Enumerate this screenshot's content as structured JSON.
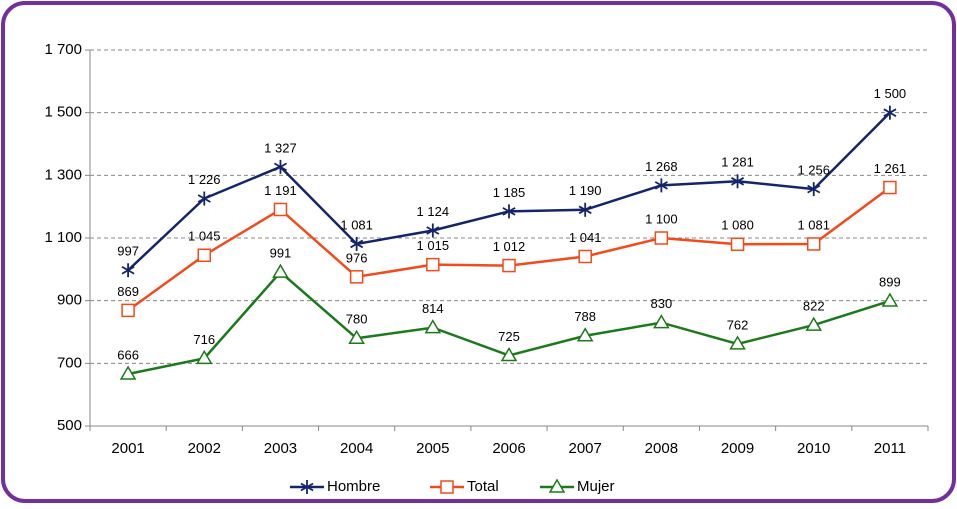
{
  "chart_data": {
    "type": "line",
    "categories": [
      "2001",
      "2002",
      "2003",
      "2004",
      "2005",
      "2006",
      "2007",
      "2008",
      "2009",
      "2010",
      "2011"
    ],
    "series": [
      {
        "name": "Hombre",
        "color": "#14256b",
        "marker": "star",
        "values": [
          997,
          1226,
          1327,
          1081,
          1124,
          1185,
          1190,
          1268,
          1281,
          1256,
          1500
        ],
        "value_labels": [
          "997",
          "1 226",
          "1 327",
          "1 081",
          "1 124",
          "1 185",
          "1 190",
          "1 268",
          "1 281",
          "1 256",
          "1 500"
        ]
      },
      {
        "name": "Total",
        "color": "#f24a1b",
        "marker": "square",
        "values": [
          869,
          1045,
          1191,
          976,
          1015,
          1012,
          1041,
          1100,
          1080,
          1081,
          1261
        ],
        "value_labels": [
          "869",
          "1 045",
          "1 191",
          "976",
          "1 015",
          "1 012",
          "1 041",
          "1 100",
          "1 080",
          "1 081",
          "1 261"
        ]
      },
      {
        "name": "Mujer",
        "color": "#1b7a1b",
        "marker": "triangle",
        "values": [
          666,
          716,
          991,
          780,
          814,
          725,
          788,
          830,
          762,
          822,
          899
        ]
      }
    ],
    "ylim": [
      500,
      1700
    ],
    "yticks": [
      500,
      700,
      900,
      {
        "value": 1100,
        "label": "1 100"
      },
      {
        "value": 1300,
        "label": "1 300"
      },
      {
        "value": 1500,
        "label": "1 500"
      },
      {
        "value": 1700,
        "label": "1 700"
      }
    ],
    "grid": true,
    "legend": "bottom"
  }
}
